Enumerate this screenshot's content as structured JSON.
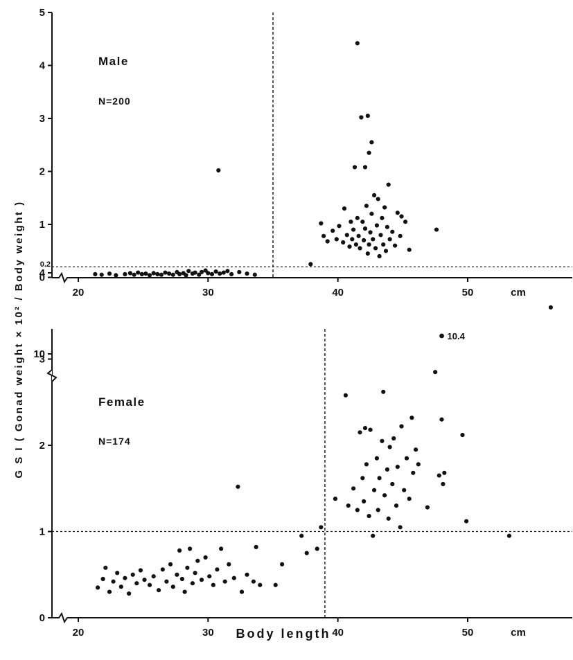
{
  "figure": {
    "ylabel": "G S I ( Gonad weight × 10² / Body weight )",
    "xlabel": "Body length",
    "x_unit": "cm"
  },
  "chart_data": [
    {
      "type": "scatter",
      "panel": "Male",
      "n_label": "N=200",
      "xlim": [
        18,
        57
      ],
      "ylim": [
        0,
        5
      ],
      "x_ticks": [
        20,
        30,
        40,
        50
      ],
      "y_ticks": [
        0,
        1,
        2,
        3,
        4,
        5
      ],
      "y_extra_tick": {
        "value": 0.2,
        "label": "0.2"
      },
      "reference_lines": {
        "x": 35,
        "y": 0.2
      },
      "grid": false,
      "points": [
        [
          21.3,
          0.06
        ],
        [
          21.8,
          0.05
        ],
        [
          22.4,
          0.07
        ],
        [
          22.9,
          0.04
        ],
        [
          23.6,
          0.06
        ],
        [
          24.0,
          0.08
        ],
        [
          24.3,
          0.05
        ],
        [
          24.6,
          0.09
        ],
        [
          24.9,
          0.06
        ],
        [
          25.2,
          0.07
        ],
        [
          25.5,
          0.04
        ],
        [
          25.8,
          0.08
        ],
        [
          26.1,
          0.06
        ],
        [
          26.4,
          0.05
        ],
        [
          26.7,
          0.09
        ],
        [
          27.0,
          0.07
        ],
        [
          27.3,
          0.05
        ],
        [
          27.6,
          0.1
        ],
        [
          27.8,
          0.06
        ],
        [
          28.1,
          0.08
        ],
        [
          28.3,
          0.04
        ],
        [
          28.5,
          0.12
        ],
        [
          28.8,
          0.07
        ],
        [
          29.0,
          0.09
        ],
        [
          29.3,
          0.05
        ],
        [
          29.5,
          0.1
        ],
        [
          29.8,
          0.13
        ],
        [
          30.0,
          0.08
        ],
        [
          30.3,
          0.06
        ],
        [
          30.6,
          0.11
        ],
        [
          30.9,
          0.07
        ],
        [
          31.2,
          0.09
        ],
        [
          31.5,
          0.12
        ],
        [
          31.8,
          0.06
        ],
        [
          32.4,
          0.1
        ],
        [
          33.0,
          0.07
        ],
        [
          33.6,
          0.05
        ],
        [
          30.8,
          2.02
        ],
        [
          37.9,
          0.25
        ],
        [
          38.7,
          1.02
        ],
        [
          38.9,
          0.78
        ],
        [
          39.2,
          0.68
        ],
        [
          39.6,
          0.88
        ],
        [
          39.9,
          0.72
        ],
        [
          40.1,
          0.97
        ],
        [
          40.4,
          0.66
        ],
        [
          40.5,
          1.3
        ],
        [
          40.7,
          0.8
        ],
        [
          40.9,
          0.58
        ],
        [
          41.0,
          1.05
        ],
        [
          41.1,
          0.72
        ],
        [
          41.2,
          0.9
        ],
        [
          41.3,
          2.08
        ],
        [
          41.4,
          0.62
        ],
        [
          41.5,
          1.12
        ],
        [
          41.5,
          4.42
        ],
        [
          41.6,
          0.78
        ],
        [
          41.7,
          0.55
        ],
        [
          41.8,
          3.02
        ],
        [
          41.9,
          1.05
        ],
        [
          42.0,
          0.7
        ],
        [
          42.1,
          0.92
        ],
        [
          42.1,
          2.08
        ],
        [
          42.2,
          1.35
        ],
        [
          42.3,
          0.45
        ],
        [
          42.3,
          3.05
        ],
        [
          42.4,
          0.62
        ],
        [
          42.4,
          2.35
        ],
        [
          42.5,
          0.85
        ],
        [
          42.6,
          2.55
        ],
        [
          42.6,
          1.2
        ],
        [
          42.7,
          0.72
        ],
        [
          42.8,
          1.55
        ],
        [
          42.9,
          0.55
        ],
        [
          43.0,
          0.98
        ],
        [
          43.1,
          1.48
        ],
        [
          43.2,
          0.4
        ],
        [
          43.3,
          0.8
        ],
        [
          43.4,
          1.12
        ],
        [
          43.5,
          0.62
        ],
        [
          43.6,
          1.32
        ],
        [
          43.7,
          0.5
        ],
        [
          43.8,
          0.95
        ],
        [
          43.9,
          1.75
        ],
        [
          44.0,
          0.72
        ],
        [
          44.2,
          0.86
        ],
        [
          44.4,
          0.6
        ],
        [
          44.6,
          1.22
        ],
        [
          44.8,
          0.78
        ],
        [
          44.9,
          1.15
        ],
        [
          45.2,
          1.05
        ],
        [
          45.5,
          0.52
        ],
        [
          47.6,
          0.9
        ]
      ]
    },
    {
      "type": "scatter",
      "panel": "Female",
      "n_label": "N=174",
      "xlim": [
        18,
        57
      ],
      "ylim": [
        0,
        4.5
      ],
      "x_ticks": [
        20,
        30,
        40,
        50
      ],
      "y_ticks": [
        0,
        1,
        2,
        3,
        4
      ],
      "y_break_tick": {
        "value": 10,
        "label": "10"
      },
      "reference_lines": {
        "x": 39,
        "y": 1
      },
      "grid": false,
      "annotation": {
        "x": 48,
        "label": "10.4"
      },
      "points": [
        [
          21.5,
          0.35
        ],
        [
          21.9,
          0.45
        ],
        [
          22.1,
          0.58
        ],
        [
          22.4,
          0.3
        ],
        [
          22.7,
          0.42
        ],
        [
          23.0,
          0.52
        ],
        [
          23.3,
          0.36
        ],
        [
          23.6,
          0.46
        ],
        [
          23.9,
          0.28
        ],
        [
          24.2,
          0.5
        ],
        [
          24.5,
          0.4
        ],
        [
          24.8,
          0.55
        ],
        [
          25.1,
          0.44
        ],
        [
          25.5,
          0.38
        ],
        [
          25.8,
          0.48
        ],
        [
          26.2,
          0.32
        ],
        [
          26.5,
          0.56
        ],
        [
          26.8,
          0.42
        ],
        [
          27.1,
          0.62
        ],
        [
          27.3,
          0.36
        ],
        [
          27.6,
          0.5
        ],
        [
          27.8,
          0.78
        ],
        [
          28.0,
          0.45
        ],
        [
          28.2,
          0.3
        ],
        [
          28.4,
          0.58
        ],
        [
          28.6,
          0.8
        ],
        [
          28.8,
          0.4
        ],
        [
          29.0,
          0.52
        ],
        [
          29.2,
          0.66
        ],
        [
          29.5,
          0.44
        ],
        [
          29.8,
          0.7
        ],
        [
          30.1,
          0.48
        ],
        [
          30.4,
          0.38
        ],
        [
          30.7,
          0.56
        ],
        [
          31.0,
          0.8
        ],
        [
          31.3,
          0.42
        ],
        [
          31.6,
          0.62
        ],
        [
          32.0,
          0.46
        ],
        [
          32.3,
          1.52
        ],
        [
          32.6,
          0.3
        ],
        [
          33.0,
          0.5
        ],
        [
          33.5,
          0.42
        ],
        [
          33.7,
          0.82
        ],
        [
          34.0,
          0.38
        ],
        [
          35.2,
          0.38
        ],
        [
          35.7,
          0.62
        ],
        [
          37.2,
          0.95
        ],
        [
          37.6,
          0.75
        ],
        [
          38.4,
          0.8
        ],
        [
          38.7,
          1.05
        ],
        [
          39.8,
          1.38
        ],
        [
          40.6,
          2.58
        ],
        [
          40.8,
          1.3
        ],
        [
          41.2,
          1.5
        ],
        [
          41.5,
          1.25
        ],
        [
          41.7,
          2.15
        ],
        [
          41.9,
          1.62
        ],
        [
          42.0,
          1.35
        ],
        [
          42.1,
          2.2
        ],
        [
          42.2,
          1.78
        ],
        [
          42.4,
          1.18
        ],
        [
          42.5,
          2.18
        ],
        [
          42.7,
          0.95
        ],
        [
          42.8,
          1.48
        ],
        [
          43.0,
          1.85
        ],
        [
          43.1,
          1.25
        ],
        [
          43.2,
          1.62
        ],
        [
          43.4,
          2.05
        ],
        [
          43.5,
          2.62
        ],
        [
          43.6,
          1.42
        ],
        [
          43.8,
          1.72
        ],
        [
          43.9,
          1.15
        ],
        [
          44.0,
          1.98
        ],
        [
          44.2,
          1.55
        ],
        [
          44.3,
          2.08
        ],
        [
          44.5,
          1.3
        ],
        [
          44.6,
          1.75
        ],
        [
          44.8,
          1.05
        ],
        [
          44.9,
          2.22
        ],
        [
          45.1,
          1.48
        ],
        [
          45.3,
          1.85
        ],
        [
          45.5,
          1.38
        ],
        [
          45.7,
          2.32
        ],
        [
          45.8,
          1.68
        ],
        [
          46.0,
          1.95
        ],
        [
          46.2,
          1.78
        ],
        [
          46.9,
          1.28
        ],
        [
          47.5,
          2.85
        ],
        [
          47.8,
          1.65
        ],
        [
          48.0,
          2.3
        ],
        [
          48.1,
          1.55
        ],
        [
          48.2,
          1.68
        ],
        [
          49.6,
          2.12
        ],
        [
          49.9,
          1.12
        ],
        [
          53.2,
          0.95
        ],
        [
          56.4,
          3.6
        ]
      ]
    }
  ]
}
